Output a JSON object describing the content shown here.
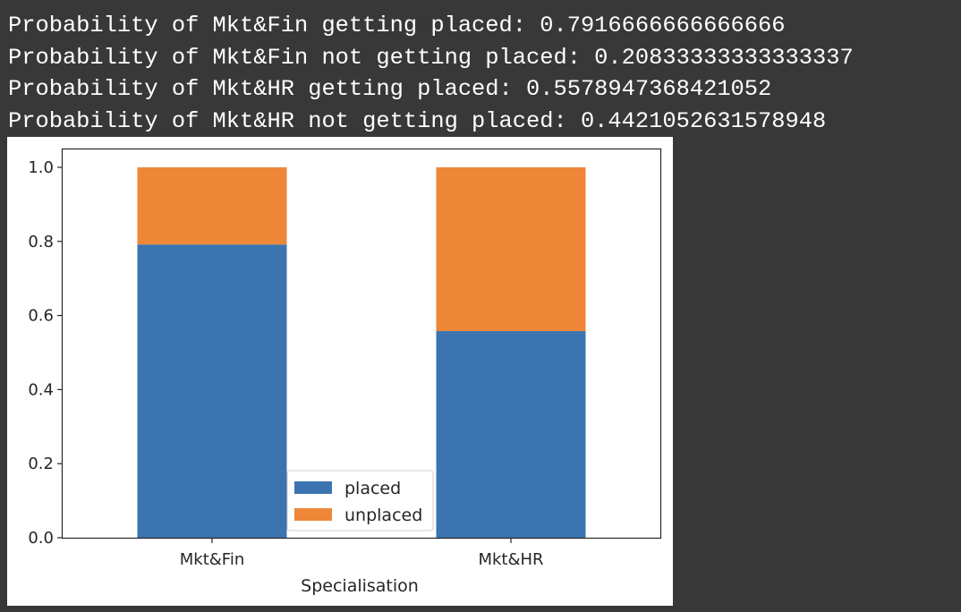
{
  "console": {
    "lines": [
      "Probability of Mkt&Fin getting placed: 0.7916666666666666",
      "Probability of Mkt&Fin not getting placed: 0.20833333333333337",
      "Probability of Mkt&HR getting placed: 0.5578947368421052",
      "Probability of Mkt&HR not getting placed: 0.4421052631578948"
    ]
  },
  "chart_data": {
    "type": "bar",
    "stacked": true,
    "categories": [
      "Mkt&Fin",
      "Mkt&HR"
    ],
    "series": [
      {
        "name": "placed",
        "values": [
          0.7916666666666666,
          0.5578947368421052
        ],
        "color": "#3b74b0"
      },
      {
        "name": "unplaced",
        "values": [
          0.20833333333333337,
          0.4421052631578948
        ],
        "color": "#ee8738"
      }
    ],
    "title": "",
    "xlabel": "Specialisation",
    "ylabel": "",
    "ylim": [
      0,
      1.0
    ],
    "yticks": [
      "0.0",
      "0.2",
      "0.4",
      "0.6",
      "0.8",
      "1.0"
    ],
    "grid": false,
    "legend_position": "bottom-center"
  }
}
